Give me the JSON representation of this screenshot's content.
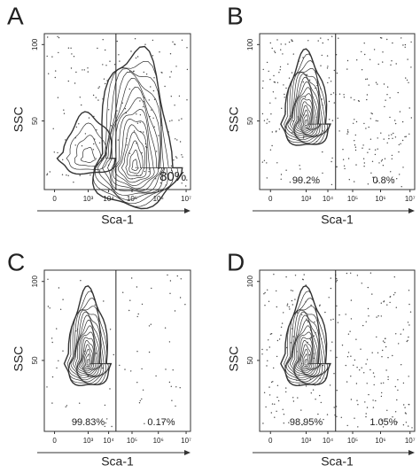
{
  "panels": [
    {
      "letter": "A",
      "y_label": "SSC",
      "x_label": "Sca-1",
      "y_ticks": [
        "100",
        "50"
      ],
      "x_ticks": [
        "0",
        "10³",
        "10⁴",
        "10⁵",
        "10⁶",
        "10⁷"
      ],
      "gates": {
        "right": "80%"
      }
    },
    {
      "letter": "B",
      "y_label": "SSC",
      "x_label": "Sca-1",
      "y_ticks": [
        "100",
        "50"
      ],
      "x_ticks": [
        "0",
        "10³",
        "10⁴",
        "10⁵",
        "10⁶",
        "10⁷"
      ],
      "gates": {
        "left": "99.2%",
        "right": "0.8%"
      }
    },
    {
      "letter": "C",
      "y_label": "SSC",
      "x_label": "Sca-1",
      "y_ticks": [
        "100",
        "50"
      ],
      "x_ticks": [
        "0",
        "10³",
        "10⁴",
        "10⁵",
        "10⁶",
        "10⁷"
      ],
      "gates": {
        "left": "99.83%",
        "right": "0.17%"
      }
    },
    {
      "letter": "D",
      "y_label": "SSC",
      "x_label": "Sca-1",
      "y_ticks": [
        "100",
        "50"
      ],
      "x_ticks": [
        "0",
        "10³",
        "10⁴",
        "10⁵",
        "10⁶",
        "10⁷"
      ],
      "gates": {
        "left": "98.95%",
        "right": "1.05%"
      }
    }
  ]
}
